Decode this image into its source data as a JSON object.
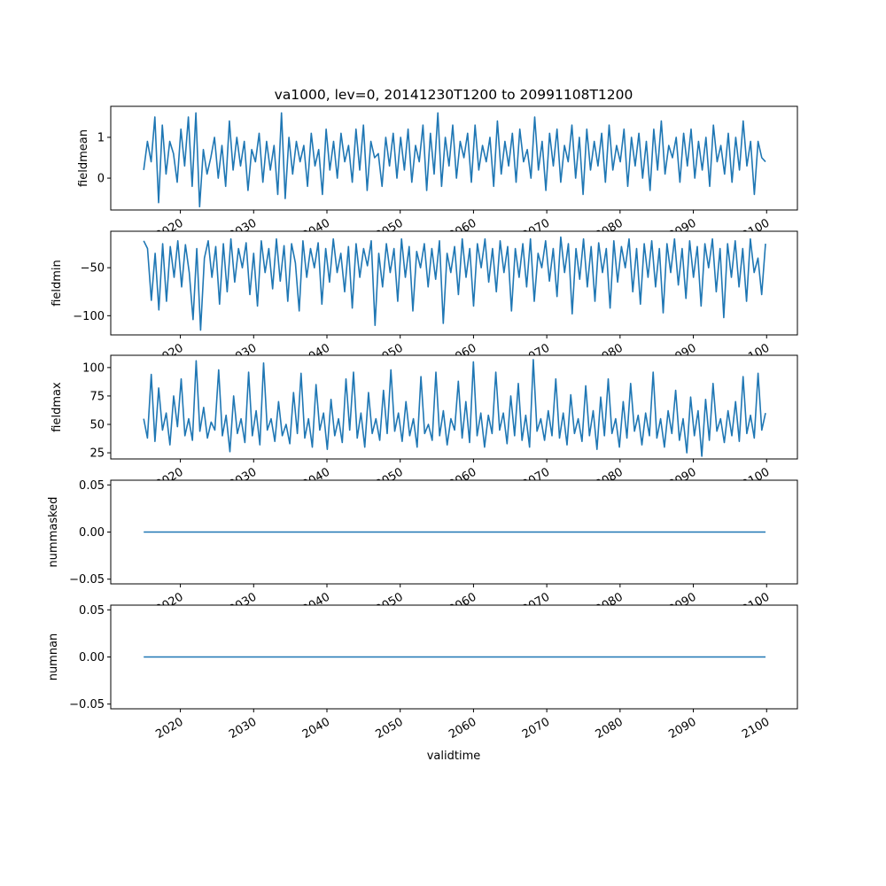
{
  "chart_data": {
    "type": "line",
    "title": "va1000, lev=0, 20141230T1200 to 20991108T1200",
    "xlabel": "validtime",
    "x_range": [
      2015.0,
      2099.85
    ],
    "xlim": [
      2010.5,
      2104.2
    ],
    "xticks": [
      2020,
      2030,
      2040,
      2050,
      2060,
      2070,
      2080,
      2090,
      2100
    ],
    "xtick_labels": [
      "2020",
      "2030",
      "2040",
      "2050",
      "2060",
      "2070",
      "2080",
      "2090",
      "2100"
    ],
    "line_color": "#1f77b4",
    "grid": false,
    "panels": [
      {
        "ylabel": "fieldmean",
        "ylim": [
          -0.78,
          1.76
        ],
        "yticks": [
          0,
          1
        ],
        "ytick_labels": [
          "0",
          "1"
        ],
        "values": [
          0.2,
          0.9,
          0.4,
          1.5,
          -0.6,
          1.3,
          0.1,
          0.9,
          0.6,
          -0.1,
          1.2,
          0.3,
          1.5,
          -0.2,
          1.6,
          -0.7,
          0.7,
          0.1,
          0.5,
          1.0,
          0.0,
          0.8,
          -0.2,
          1.4,
          0.2,
          1.0,
          0.3,
          0.9,
          -0.3,
          0.7,
          0.4,
          1.1,
          -0.1,
          0.9,
          0.2,
          0.8,
          -0.4,
          1.6,
          -0.5,
          1.0,
          0.1,
          0.9,
          0.4,
          0.8,
          -0.2,
          1.1,
          0.3,
          0.7,
          -0.4,
          1.2,
          0.2,
          0.9,
          0.0,
          1.1,
          0.4,
          0.8,
          -0.1,
          1.2,
          0.2,
          1.3,
          -0.3,
          0.9,
          0.5,
          0.6,
          -0.2,
          1.0,
          0.3,
          1.1,
          0.0,
          1.0,
          0.2,
          1.2,
          -0.1,
          0.8,
          0.4,
          1.3,
          -0.3,
          1.1,
          0.1,
          1.6,
          -0.2,
          1.0,
          0.3,
          1.3,
          0.0,
          0.9,
          0.5,
          1.1,
          -0.1,
          1.3,
          0.2,
          0.8,
          0.4,
          1.0,
          -0.2,
          1.4,
          0.1,
          0.9,
          0.3,
          1.1,
          -0.1,
          1.2,
          0.4,
          0.7,
          0.0,
          1.5,
          0.2,
          0.9,
          -0.3,
          1.1,
          0.3,
          1.2,
          -0.1,
          0.8,
          0.4,
          1.3,
          0.0,
          1.0,
          -0.4,
          1.2,
          0.2,
          0.9,
          0.3,
          1.1,
          -0.1,
          1.3,
          0.2,
          0.8,
          0.4,
          1.2,
          -0.2,
          1.0,
          0.3,
          1.1,
          0.0,
          0.9,
          -0.3,
          1.2,
          0.2,
          1.4,
          0.1,
          0.8,
          0.5,
          1.0,
          -0.1,
          1.1,
          0.3,
          1.2,
          0.0,
          0.9,
          0.2,
          1.0,
          -0.2,
          1.3,
          0.4,
          0.8,
          0.1,
          1.1,
          -0.1,
          1.0,
          0.2,
          1.4,
          0.3,
          0.9,
          -0.4,
          0.9,
          0.5,
          0.4
        ]
      },
      {
        "ylabel": "fieldmin",
        "ylim": [
          -120,
          -12
        ],
        "yticks": [
          -100,
          -50
        ],
        "ytick_labels": [
          "−100",
          "−50"
        ],
        "values": [
          -22,
          -30,
          -84,
          -35,
          -94,
          -25,
          -85,
          -28,
          -60,
          -22,
          -70,
          -26,
          -55,
          -104,
          -30,
          -115,
          -40,
          -22,
          -60,
          -28,
          -88,
          -25,
          -75,
          -20,
          -65,
          -30,
          -50,
          -24,
          -78,
          -35,
          -90,
          -22,
          -55,
          -30,
          -72,
          -20,
          -64,
          -27,
          -85,
          -25,
          -45,
          -95,
          -22,
          -60,
          -30,
          -50,
          -24,
          -88,
          -30,
          -65,
          -20,
          -55,
          -35,
          -75,
          -28,
          -92,
          -25,
          -60,
          -30,
          -48,
          -22,
          -110,
          -35,
          -70,
          -25,
          -55,
          -30,
          -85,
          -20,
          -60,
          -28,
          -95,
          -33,
          -50,
          -25,
          -70,
          -30,
          -62,
          -22,
          -108,
          -35,
          -55,
          -28,
          -78,
          -20,
          -60,
          -30,
          -90,
          -25,
          -50,
          -20,
          -65,
          -30,
          -75,
          -22,
          -55,
          -28,
          -95,
          -30,
          -60,
          -25,
          -70,
          -20,
          -85,
          -35,
          -50,
          -22,
          -64,
          -30,
          -80,
          -18,
          -55,
          -25,
          -98,
          -30,
          -62,
          -20,
          -70,
          -28,
          -85,
          -24,
          -55,
          -30,
          -92,
          -22,
          -65,
          -28,
          -50,
          -20,
          -75,
          -30,
          -88,
          -25,
          -60,
          -22,
          -70,
          -30,
          -97,
          -25,
          -55,
          -20,
          -68,
          -30,
          -82,
          -22,
          -60,
          -28,
          -90,
          -25,
          -50,
          -20,
          -75,
          -30,
          -102,
          -25,
          -60,
          -22,
          -70,
          -30,
          -85,
          -20,
          -55,
          -40,
          -78,
          -25
        ]
      },
      {
        "ylabel": "fieldmax",
        "ylim": [
          19.6,
          110.8
        ],
        "yticks": [
          25,
          50,
          75,
          100
        ],
        "ytick_labels": [
          "25",
          "50",
          "75",
          "100"
        ],
        "values": [
          55,
          38,
          94,
          35,
          82,
          45,
          60,
          32,
          75,
          48,
          90,
          40,
          55,
          36,
          106,
          44,
          65,
          38,
          52,
          45,
          98,
          40,
          58,
          26,
          75,
          42,
          55,
          34,
          96,
          40,
          62,
          32,
          104,
          45,
          55,
          35,
          70,
          40,
          50,
          33,
          78,
          42,
          95,
          38,
          55,
          30,
          85,
          45,
          60,
          28,
          72,
          40,
          55,
          34,
          90,
          45,
          96,
          38,
          60,
          30,
          78,
          42,
          55,
          36,
          80,
          42,
          98,
          44,
          60,
          35,
          70,
          40,
          55,
          30,
          92,
          42,
          50,
          36,
          96,
          40,
          62,
          32,
          55,
          45,
          88,
          38,
          70,
          34,
          105,
          40,
          60,
          30,
          58,
          42,
          96,
          45,
          60,
          33,
          75,
          40,
          86,
          36,
          58,
          30,
          107,
          44,
          55,
          36,
          62,
          40,
          90,
          38,
          60,
          32,
          76,
          42,
          55,
          35,
          84,
          40,
          62,
          28,
          74,
          40,
          90,
          42,
          55,
          30,
          70,
          38,
          86,
          44,
          58,
          32,
          60,
          40,
          96,
          38,
          55,
          30,
          62,
          42,
          80,
          36,
          55,
          25,
          74,
          40,
          62,
          22,
          72,
          36,
          86,
          44,
          55,
          34,
          62,
          40,
          70,
          35,
          92,
          42,
          58,
          38,
          95,
          45,
          60
        ]
      },
      {
        "ylabel": "nummasked",
        "ylim": [
          -0.055,
          0.055
        ],
        "yticks": [
          -0.05,
          0.0,
          0.05
        ],
        "ytick_labels": [
          "−0.05",
          "0.00",
          "0.05"
        ],
        "values": [
          0,
          0
        ]
      },
      {
        "ylabel": "numnan",
        "ylim": [
          -0.055,
          0.055
        ],
        "yticks": [
          -0.05,
          0.0,
          0.05
        ],
        "ytick_labels": [
          "−0.05",
          "0.00",
          "0.05"
        ],
        "values": [
          0,
          0
        ]
      }
    ]
  }
}
